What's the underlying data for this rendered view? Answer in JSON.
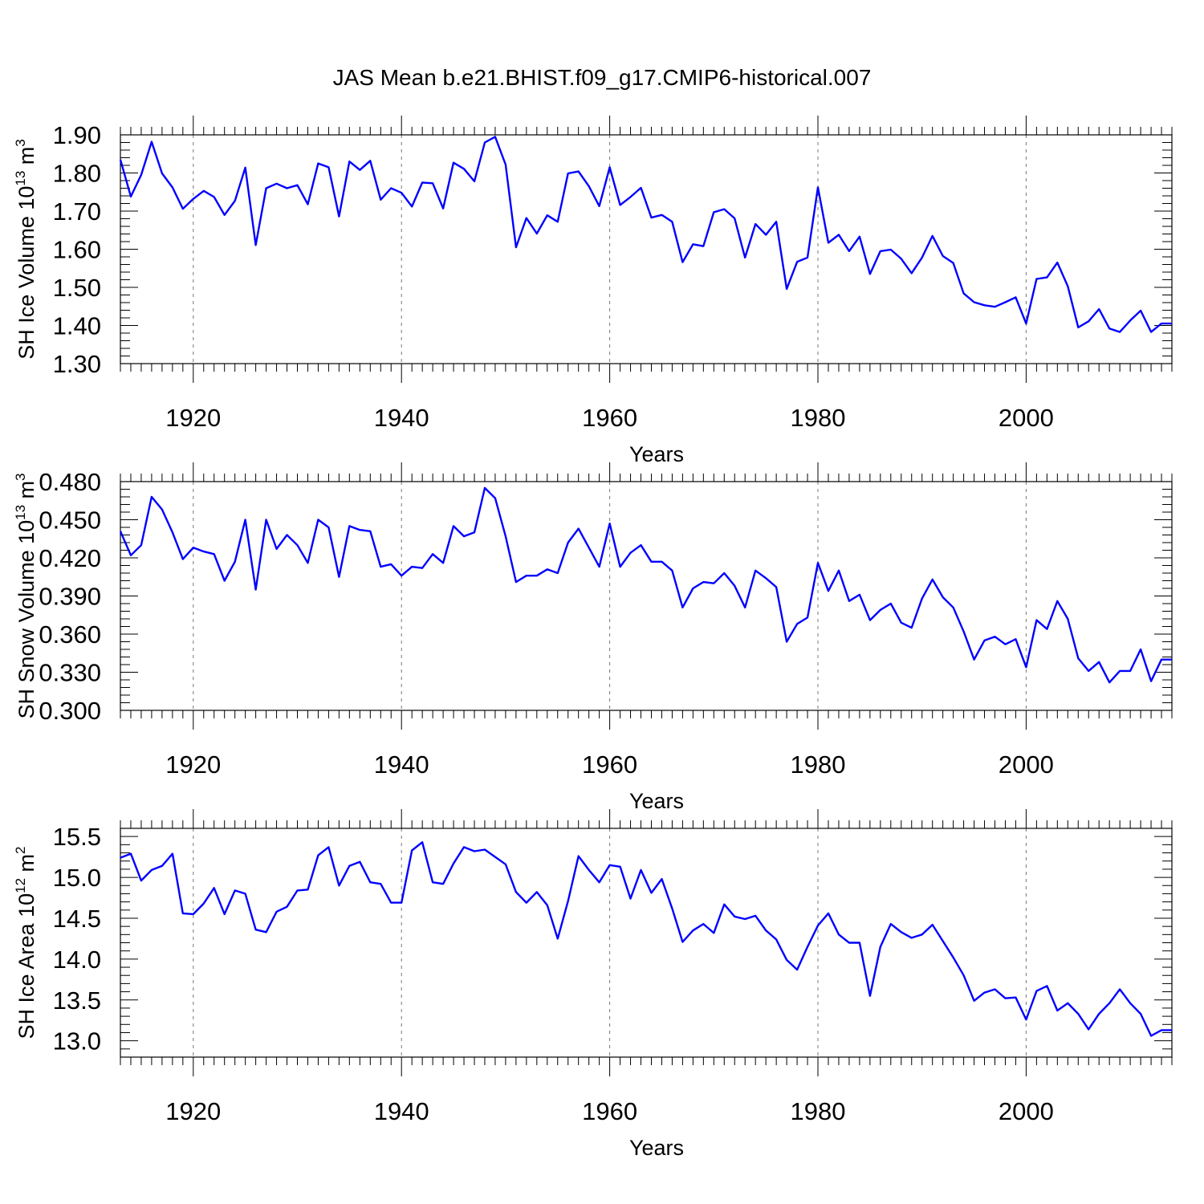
{
  "title": "JAS Mean b.e21.BHIST.f09_g17.CMIP6-historical.007",
  "line_color": "#0000ff",
  "chart_data": [
    {
      "type": "line",
      "ylabel": "SH Ice Volume 10",
      "ylabel_exp": "13",
      "ylabel_unit": " m",
      "ylabel_unit_exp": "3",
      "xlabel": "Years",
      "xlim": [
        1913,
        2014
      ],
      "ylim": [
        1.3,
        1.9
      ],
      "yticks": [
        1.3,
        1.4,
        1.5,
        1.6,
        1.7,
        1.8,
        1.9
      ],
      "ytick_labels": [
        "1.30",
        "1.40",
        "1.50",
        "1.60",
        "1.70",
        "1.80",
        "1.90"
      ],
      "xticks": [
        1920,
        1940,
        1960,
        1980,
        2000
      ],
      "xtick_labels": [
        "1920",
        "1940",
        "1960",
        "1980",
        "2000"
      ],
      "grid": "vertical-dashed",
      "x": [
        1913,
        1914,
        1915,
        1916,
        1917,
        1918,
        1919,
        1920,
        1921,
        1922,
        1923,
        1924,
        1925,
        1926,
        1927,
        1928,
        1929,
        1930,
        1931,
        1932,
        1933,
        1934,
        1935,
        1936,
        1937,
        1938,
        1939,
        1940,
        1941,
        1942,
        1943,
        1944,
        1945,
        1946,
        1947,
        1948,
        1949,
        1950,
        1951,
        1952,
        1953,
        1954,
        1955,
        1956,
        1957,
        1958,
        1959,
        1960,
        1961,
        1962,
        1963,
        1964,
        1965,
        1966,
        1967,
        1968,
        1969,
        1970,
        1971,
        1972,
        1973,
        1974,
        1975,
        1976,
        1977,
        1978,
        1979,
        1980,
        1981,
        1982,
        1983,
        1984,
        1985,
        1986,
        1987,
        1988,
        1989,
        1990,
        1991,
        1992,
        1993,
        1994,
        1995,
        1996,
        1997,
        1998,
        1999,
        2000,
        2001,
        2002,
        2003,
        2004,
        2005,
        2006,
        2007,
        2008,
        2009,
        2010,
        2011,
        2012,
        2013,
        2014
      ],
      "y": [
        1.835,
        1.738,
        1.795,
        1.882,
        1.799,
        1.762,
        1.706,
        1.732,
        1.753,
        1.737,
        1.69,
        1.727,
        1.814,
        1.611,
        1.76,
        1.772,
        1.76,
        1.768,
        1.718,
        1.825,
        1.815,
        1.686,
        1.83,
        1.808,
        1.832,
        1.73,
        1.76,
        1.748,
        1.712,
        1.775,
        1.773,
        1.707,
        1.827,
        1.811,
        1.778,
        1.88,
        1.895,
        1.822,
        1.605,
        1.682,
        1.641,
        1.689,
        1.672,
        1.799,
        1.804,
        1.765,
        1.713,
        1.815,
        1.716,
        1.737,
        1.761,
        1.683,
        1.69,
        1.672,
        1.566,
        1.613,
        1.608,
        1.697,
        1.705,
        1.681,
        1.578,
        1.666,
        1.638,
        1.672,
        1.496,
        1.567,
        1.578,
        1.762,
        1.617,
        1.638,
        1.595,
        1.633,
        1.535,
        1.595,
        1.599,
        1.575,
        1.537,
        1.578,
        1.635,
        1.582,
        1.564,
        1.484,
        1.461,
        1.453,
        1.449,
        1.461,
        1.474,
        1.405,
        1.522,
        1.526,
        1.565,
        1.503,
        1.395,
        1.411,
        1.443,
        1.392,
        1.383,
        1.413,
        1.439,
        1.383,
        1.405,
        1.405
      ]
    },
    {
      "type": "line",
      "ylabel": "SH Snow Volume 10",
      "ylabel_exp": "13",
      "ylabel_unit": " m",
      "ylabel_unit_exp": "3",
      "xlabel": "Years",
      "xlim": [
        1913,
        2014
      ],
      "ylim": [
        0.3,
        0.48
      ],
      "yticks": [
        0.3,
        0.33,
        0.36,
        0.39,
        0.42,
        0.45,
        0.48
      ],
      "ytick_labels": [
        "0.300",
        "0.330",
        "0.360",
        "0.390",
        "0.420",
        "0.450",
        "0.480"
      ],
      "xticks": [
        1920,
        1940,
        1960,
        1980,
        2000
      ],
      "xtick_labels": [
        "1920",
        "1940",
        "1960",
        "1980",
        "2000"
      ],
      "grid": "vertical-dashed",
      "x": [
        1913,
        1914,
        1915,
        1916,
        1917,
        1918,
        1919,
        1920,
        1921,
        1922,
        1923,
        1924,
        1925,
        1926,
        1927,
        1928,
        1929,
        1930,
        1931,
        1932,
        1933,
        1934,
        1935,
        1936,
        1937,
        1938,
        1939,
        1940,
        1941,
        1942,
        1943,
        1944,
        1945,
        1946,
        1947,
        1948,
        1949,
        1950,
        1951,
        1952,
        1953,
        1954,
        1955,
        1956,
        1957,
        1958,
        1959,
        1960,
        1961,
        1962,
        1963,
        1964,
        1965,
        1966,
        1967,
        1968,
        1969,
        1970,
        1971,
        1972,
        1973,
        1974,
        1975,
        1976,
        1977,
        1978,
        1979,
        1980,
        1981,
        1982,
        1983,
        1984,
        1985,
        1986,
        1987,
        1988,
        1989,
        1990,
        1991,
        1992,
        1993,
        1994,
        1995,
        1996,
        1997,
        1998,
        1999,
        2000,
        2001,
        2002,
        2003,
        2004,
        2005,
        2006,
        2007,
        2008,
        2009,
        2010,
        2011,
        2012,
        2013,
        2014
      ],
      "y": [
        0.441,
        0.422,
        0.43,
        0.468,
        0.458,
        0.44,
        0.419,
        0.428,
        0.425,
        0.423,
        0.402,
        0.417,
        0.45,
        0.395,
        0.45,
        0.427,
        0.438,
        0.43,
        0.416,
        0.45,
        0.444,
        0.405,
        0.445,
        0.442,
        0.441,
        0.413,
        0.415,
        0.406,
        0.413,
        0.412,
        0.423,
        0.416,
        0.445,
        0.437,
        0.44,
        0.475,
        0.467,
        0.437,
        0.401,
        0.406,
        0.406,
        0.411,
        0.408,
        0.432,
        0.443,
        0.428,
        0.413,
        0.447,
        0.413,
        0.424,
        0.43,
        0.417,
        0.417,
        0.41,
        0.381,
        0.396,
        0.401,
        0.4,
        0.408,
        0.398,
        0.381,
        0.41,
        0.404,
        0.397,
        0.354,
        0.368,
        0.373,
        0.416,
        0.394,
        0.41,
        0.386,
        0.391,
        0.371,
        0.379,
        0.384,
        0.369,
        0.365,
        0.388,
        0.403,
        0.389,
        0.381,
        0.362,
        0.34,
        0.355,
        0.358,
        0.352,
        0.356,
        0.334,
        0.371,
        0.364,
        0.386,
        0.372,
        0.341,
        0.331,
        0.338,
        0.322,
        0.331,
        0.331,
        0.348,
        0.323,
        0.34,
        0.34
      ]
    },
    {
      "type": "line",
      "ylabel": "SH Ice Area 10",
      "ylabel_exp": "12",
      "ylabel_unit": " m",
      "ylabel_unit_exp": "2",
      "xlabel": "Years",
      "xlim": [
        1913,
        2014
      ],
      "ylim": [
        12.8,
        15.6
      ],
      "yticks": [
        13.0,
        13.5,
        14.0,
        14.5,
        15.0,
        15.5
      ],
      "ytick_labels": [
        "13.0",
        "13.5",
        "14.0",
        "14.5",
        "15.0",
        "15.5"
      ],
      "xticks": [
        1920,
        1940,
        1960,
        1980,
        2000
      ],
      "xtick_labels": [
        "1920",
        "1940",
        "1960",
        "1980",
        "2000"
      ],
      "grid": "vertical-dashed",
      "x": [
        1913,
        1914,
        1915,
        1916,
        1917,
        1918,
        1919,
        1920,
        1921,
        1922,
        1923,
        1924,
        1925,
        1926,
        1927,
        1928,
        1929,
        1930,
        1931,
        1932,
        1933,
        1934,
        1935,
        1936,
        1937,
        1938,
        1939,
        1940,
        1941,
        1942,
        1943,
        1944,
        1945,
        1946,
        1947,
        1948,
        1949,
        1950,
        1951,
        1952,
        1953,
        1954,
        1955,
        1956,
        1957,
        1958,
        1959,
        1960,
        1961,
        1962,
        1963,
        1964,
        1965,
        1966,
        1967,
        1968,
        1969,
        1970,
        1971,
        1972,
        1973,
        1974,
        1975,
        1976,
        1977,
        1978,
        1979,
        1980,
        1981,
        1982,
        1983,
        1984,
        1985,
        1986,
        1987,
        1988,
        1989,
        1990,
        1991,
        1992,
        1993,
        1994,
        1995,
        1996,
        1997,
        1998,
        1999,
        2000,
        2001,
        2002,
        2003,
        2004,
        2005,
        2006,
        2007,
        2008,
        2009,
        2010,
        2011,
        2012,
        2013,
        2014
      ],
      "y": [
        15.24,
        15.29,
        14.96,
        15.09,
        15.14,
        15.29,
        14.56,
        14.55,
        14.68,
        14.87,
        14.55,
        14.84,
        14.8,
        14.36,
        14.33,
        14.58,
        14.64,
        14.84,
        14.85,
        15.27,
        15.37,
        14.9,
        15.14,
        15.19,
        14.94,
        14.92,
        14.69,
        14.69,
        15.33,
        15.43,
        14.94,
        14.92,
        15.17,
        15.37,
        15.32,
        15.34,
        15.25,
        15.16,
        14.82,
        14.69,
        14.82,
        14.66,
        14.25,
        14.71,
        15.26,
        15.09,
        14.94,
        15.15,
        15.13,
        14.74,
        15.09,
        14.81,
        14.98,
        14.62,
        14.21,
        14.35,
        14.43,
        14.32,
        14.67,
        14.52,
        14.49,
        14.53,
        14.35,
        14.24,
        13.99,
        13.87,
        14.15,
        14.41,
        14.56,
        14.3,
        14.2,
        14.2,
        13.55,
        14.15,
        14.43,
        14.33,
        14.26,
        14.3,
        14.42,
        14.22,
        14.02,
        13.8,
        13.49,
        13.59,
        13.63,
        13.52,
        13.53,
        13.26,
        13.61,
        13.67,
        13.37,
        13.46,
        13.33,
        13.14,
        13.33,
        13.46,
        13.63,
        13.46,
        13.33,
        13.06,
        13.13,
        13.13
      ]
    }
  ]
}
